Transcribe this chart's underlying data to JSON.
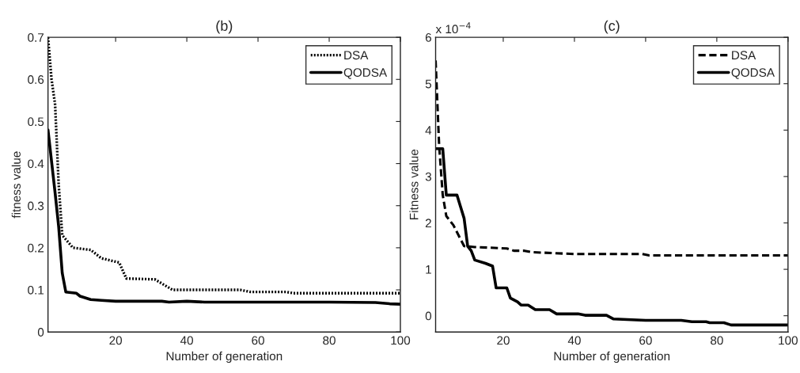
{
  "chart_data": [
    {
      "type": "line",
      "title": "(b)",
      "xlabel": "Number of generation",
      "ylabel": "fitness value",
      "xlim": [
        1,
        100
      ],
      "xticks": [
        20,
        40,
        60,
        80,
        100
      ],
      "ylim": [
        0,
        0.7
      ],
      "yticks": [
        0,
        0.1,
        0.2,
        0.3,
        0.4,
        0.5,
        0.6,
        0.7
      ],
      "legend": "top right",
      "grid": false,
      "series": [
        {
          "name": "DSA",
          "color": "#000000",
          "line_style": "dotted",
          "x": [
            1,
            2,
            3,
            4,
            5,
            6,
            8,
            13,
            16,
            21,
            23,
            31,
            33,
            36,
            55,
            58,
            68,
            70,
            100
          ],
          "values": [
            0.7,
            0.6,
            0.54,
            0.35,
            0.23,
            0.22,
            0.2,
            0.195,
            0.175,
            0.165,
            0.127,
            0.125,
            0.115,
            0.1,
            0.1,
            0.095,
            0.095,
            0.092,
            0.092
          ]
        },
        {
          "name": "QODSA",
          "color": "#000000",
          "line_style": "solid",
          "x": [
            1,
            3,
            4,
            5,
            6,
            9,
            10,
            13,
            16,
            20,
            33,
            35,
            40,
            45,
            80,
            93,
            97,
            100
          ],
          "values": [
            0.48,
            0.33,
            0.25,
            0.14,
            0.095,
            0.092,
            0.085,
            0.077,
            0.075,
            0.073,
            0.073,
            0.071,
            0.073,
            0.071,
            0.071,
            0.07,
            0.067,
            0.066
          ]
        }
      ]
    },
    {
      "type": "line",
      "title": "(c)",
      "xlabel": "Number of generation",
      "ylabel": "Fitness value",
      "annotations": [
        "x 10$^{−4}$"
      ],
      "xlim": [
        1,
        100
      ],
      "xticks": [
        20,
        40,
        60,
        80,
        100
      ],
      "ylim": [
        -0.35,
        6
      ],
      "yticks": [
        0,
        1,
        2,
        3,
        4,
        5,
        6
      ],
      "legend": "top right",
      "grid": false,
      "series": [
        {
          "name": "DSA",
          "color": "#000000",
          "line_style": "dashed",
          "x": [
            1,
            2,
            3,
            4,
            6,
            8,
            9,
            12,
            21,
            23,
            26,
            28,
            40,
            59,
            61,
            100
          ],
          "values": [
            5.5,
            3.65,
            2.6,
            2.15,
            1.95,
            1.65,
            1.5,
            1.48,
            1.45,
            1.4,
            1.4,
            1.37,
            1.33,
            1.33,
            1.3,
            1.3
          ]
        },
        {
          "name": "QODSA",
          "color": "#000000",
          "line_style": "solid",
          "x": [
            1,
            3,
            4,
            7,
            8,
            9,
            10,
            11,
            12,
            15,
            17,
            18,
            21,
            22,
            24,
            25,
            27,
            29,
            33,
            35,
            41,
            43,
            49,
            51,
            60,
            70,
            73,
            77,
            78,
            82,
            84,
            100
          ],
          "values": [
            3.6,
            3.6,
            2.6,
            2.6,
            2.35,
            2.1,
            1.5,
            1.4,
            1.2,
            1.13,
            1.07,
            0.6,
            0.6,
            0.38,
            0.3,
            0.23,
            0.23,
            0.13,
            0.13,
            0.04,
            0.04,
            0.01,
            0.01,
            -0.07,
            -0.1,
            -0.1,
            -0.13,
            -0.13,
            -0.15,
            -0.15,
            -0.2,
            -0.2
          ]
        }
      ]
    }
  ]
}
